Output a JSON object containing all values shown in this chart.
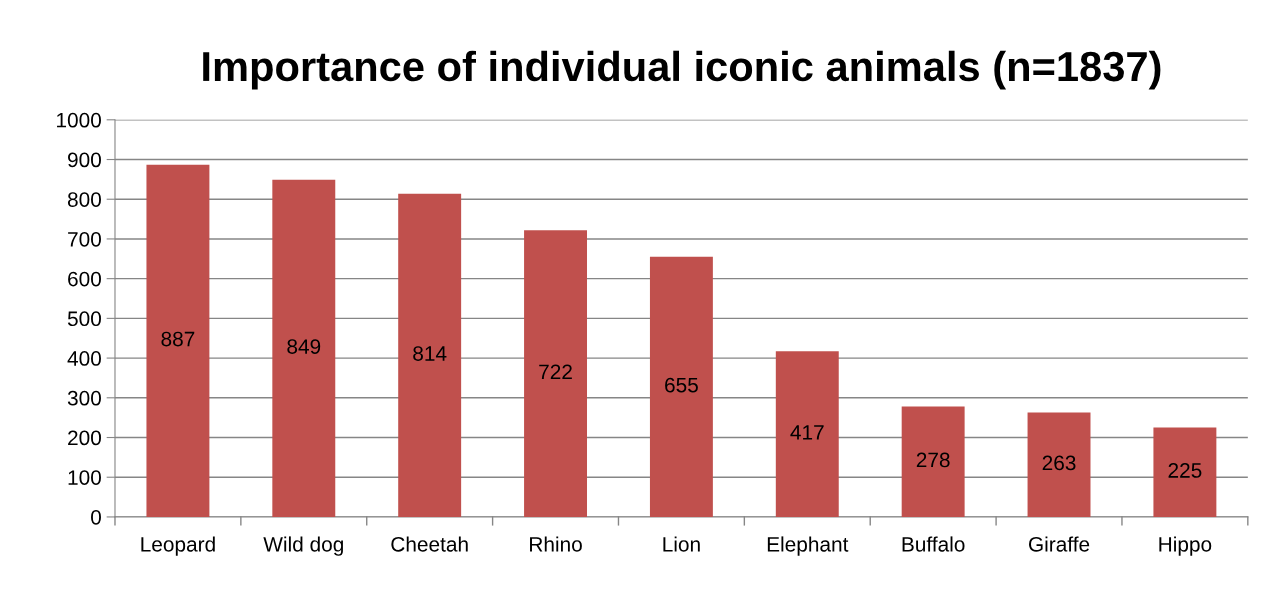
{
  "chart_data": {
    "type": "bar",
    "title": "Importance of individual iconic animals (n=1837)",
    "categories": [
      "Leopard",
      "Wild dog",
      "Cheetah",
      "Rhino",
      "Lion",
      "Elephant",
      "Buffalo",
      "Giraffe",
      "Hippo"
    ],
    "values": [
      887,
      849,
      814,
      722,
      655,
      417,
      278,
      263,
      225
    ],
    "color": "#c0504d",
    "ylim": [
      0,
      1000
    ],
    "yticks": [
      0,
      100,
      200,
      300,
      400,
      500,
      600,
      700,
      800,
      900,
      1000
    ],
    "grid": "y",
    "data_labels": true
  }
}
